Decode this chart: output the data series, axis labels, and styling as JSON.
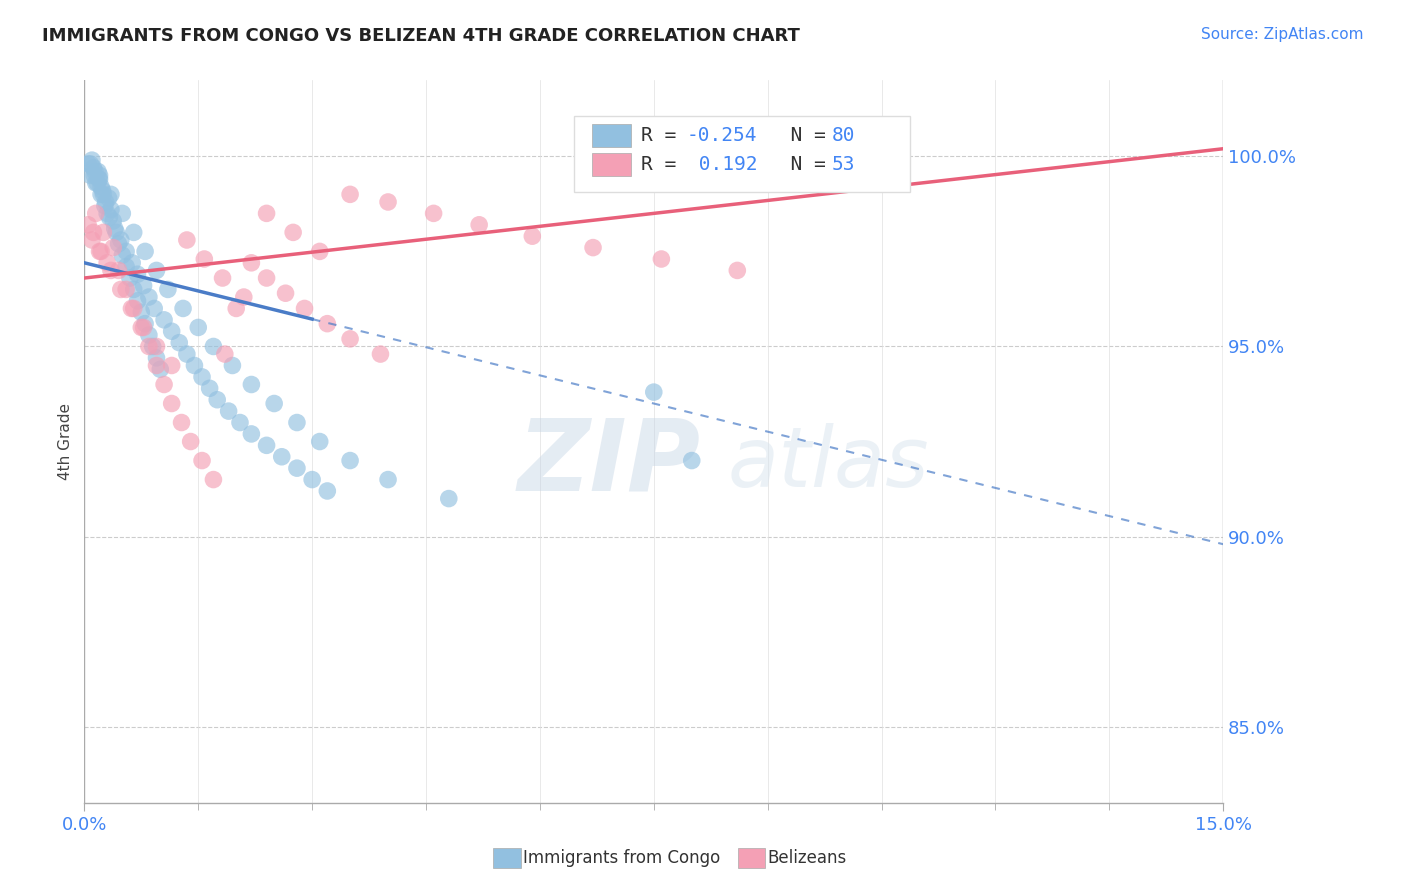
{
  "title": "IMMIGRANTS FROM CONGO VS BELIZEAN 4TH GRADE CORRELATION CHART",
  "source_text": "Source: ZipAtlas.com",
  "ylabel": "4th Grade",
  "xlim": [
    0.0,
    15.0
  ],
  "ylim": [
    83.0,
    102.0
  ],
  "ytick_values": [
    85.0,
    90.0,
    95.0,
    100.0
  ],
  "blue_color": "#92C0E0",
  "pink_color": "#F4A0B5",
  "blue_line_color": "#4A7CC7",
  "pink_line_color": "#E8607A",
  "blue_line_x0": 0.0,
  "blue_line_y0": 97.2,
  "blue_line_x1": 15.0,
  "blue_line_y1": 89.8,
  "blue_solid_end": 3.0,
  "pink_line_x0": 0.0,
  "pink_line_y0": 96.8,
  "pink_line_x1": 15.0,
  "pink_line_y1": 100.2,
  "pink_solid_end": 15.0,
  "blue_scatter_x": [
    0.05,
    0.08,
    0.12,
    0.15,
    0.18,
    0.2,
    0.22,
    0.25,
    0.28,
    0.3,
    0.1,
    0.14,
    0.19,
    0.24,
    0.32,
    0.35,
    0.38,
    0.42,
    0.45,
    0.5,
    0.55,
    0.6,
    0.65,
    0.7,
    0.75,
    0.8,
    0.85,
    0.9,
    0.95,
    1.0,
    0.08,
    0.13,
    0.17,
    0.22,
    0.27,
    0.33,
    0.4,
    0.48,
    0.55,
    0.63,
    0.7,
    0.78,
    0.85,
    0.92,
    1.05,
    1.15,
    1.25,
    1.35,
    1.45,
    1.55,
    1.65,
    1.75,
    1.9,
    2.05,
    2.2,
    2.4,
    2.6,
    2.8,
    3.0,
    3.2,
    0.2,
    0.35,
    0.5,
    0.65,
    0.8,
    0.95,
    1.1,
    1.3,
    1.5,
    1.7,
    1.95,
    2.2,
    2.5,
    2.8,
    3.1,
    3.5,
    4.0,
    4.8,
    7.5,
    8.0
  ],
  "blue_scatter_y": [
    99.8,
    99.5,
    99.7,
    99.3,
    99.6,
    99.4,
    99.2,
    99.0,
    98.8,
    98.5,
    99.9,
    99.6,
    99.4,
    99.1,
    98.9,
    98.6,
    98.3,
    98.0,
    97.7,
    97.4,
    97.1,
    96.8,
    96.5,
    96.2,
    95.9,
    95.6,
    95.3,
    95.0,
    94.7,
    94.4,
    99.8,
    99.5,
    99.3,
    99.0,
    98.7,
    98.4,
    98.1,
    97.8,
    97.5,
    97.2,
    96.9,
    96.6,
    96.3,
    96.0,
    95.7,
    95.4,
    95.1,
    94.8,
    94.5,
    94.2,
    93.9,
    93.6,
    93.3,
    93.0,
    92.7,
    92.4,
    92.1,
    91.8,
    91.5,
    91.2,
    99.5,
    99.0,
    98.5,
    98.0,
    97.5,
    97.0,
    96.5,
    96.0,
    95.5,
    95.0,
    94.5,
    94.0,
    93.5,
    93.0,
    92.5,
    92.0,
    91.5,
    91.0,
    93.8,
    92.0
  ],
  "pink_scatter_x": [
    0.05,
    0.1,
    0.15,
    0.2,
    0.25,
    0.3,
    0.38,
    0.45,
    0.55,
    0.65,
    0.75,
    0.85,
    0.95,
    1.05,
    1.15,
    1.28,
    1.4,
    1.55,
    1.7,
    1.85,
    2.0,
    2.2,
    2.4,
    2.65,
    2.9,
    3.2,
    3.5,
    3.9,
    0.12,
    0.22,
    0.35,
    0.48,
    0.62,
    0.78,
    0.95,
    1.15,
    1.35,
    1.58,
    1.82,
    2.1,
    2.4,
    2.75,
    3.1,
    3.5,
    4.0,
    4.6,
    5.2,
    5.9,
    6.7,
    7.6,
    8.6,
    8.9,
    7.2
  ],
  "pink_scatter_y": [
    98.2,
    97.8,
    98.5,
    97.5,
    98.0,
    97.2,
    97.6,
    97.0,
    96.5,
    96.0,
    95.5,
    95.0,
    94.5,
    94.0,
    93.5,
    93.0,
    92.5,
    92.0,
    91.5,
    94.8,
    96.0,
    97.2,
    96.8,
    96.4,
    96.0,
    95.6,
    95.2,
    94.8,
    98.0,
    97.5,
    97.0,
    96.5,
    96.0,
    95.5,
    95.0,
    94.5,
    97.8,
    97.3,
    96.8,
    96.3,
    98.5,
    98.0,
    97.5,
    99.0,
    98.8,
    98.5,
    98.2,
    97.9,
    97.6,
    97.3,
    97.0,
    99.8,
    99.5
  ],
  "watermark_zip": "ZIP",
  "watermark_atlas": "atlas",
  "background_color": "#ffffff",
  "grid_color": "#cccccc"
}
